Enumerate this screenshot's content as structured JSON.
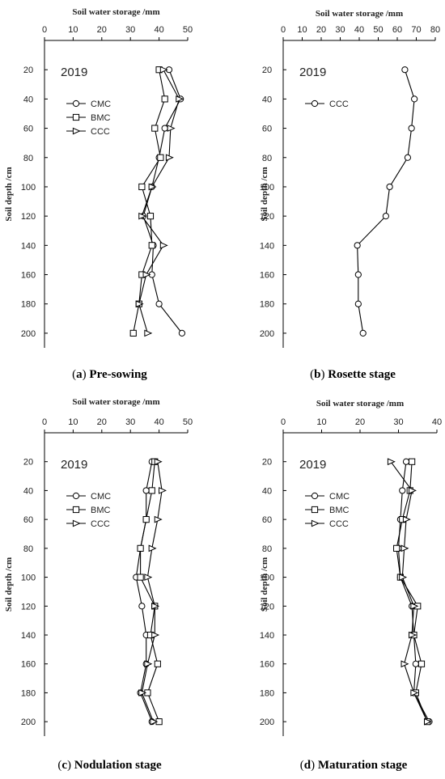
{
  "chart_data": [
    {
      "type": "line",
      "panel_letter": "a",
      "caption": "Pre-sowing",
      "year_label": "2019",
      "xlabel": "Soil water storage /mm",
      "ylabel": "Soil depth /cm",
      "xlim": [
        0,
        50
      ],
      "x_ticks": [
        0,
        10,
        20,
        30,
        40,
        50
      ],
      "ylim": [
        0,
        210
      ],
      "y_ticks": [
        20,
        40,
        60,
        80,
        100,
        120,
        140,
        160,
        180,
        200
      ],
      "legend_position": "upper-left",
      "depths": [
        20,
        40,
        60,
        80,
        100,
        120,
        140,
        160,
        180,
        200
      ],
      "series": [
        {
          "name": "CMC",
          "marker": "circle",
          "values": [
            43.5,
            47.5,
            42,
            40,
            37.5,
            34.5,
            38,
            37.5,
            40,
            48
          ]
        },
        {
          "name": "BMC",
          "marker": "square",
          "values": [
            40,
            42,
            38.5,
            40.5,
            34,
            37,
            37.5,
            34,
            33,
            31
          ]
        },
        {
          "name": "CCC",
          "marker": "triangle",
          "values": [
            41.5,
            47,
            44,
            43.5,
            37.5,
            34,
            41.5,
            35.5,
            33,
            36
          ]
        }
      ]
    },
    {
      "type": "line",
      "panel_letter": "b",
      "caption": "Rosette stage",
      "year_label": "2019",
      "xlabel": "Soil water storage /mm",
      "ylabel": "Soil depth /cm",
      "xlim": [
        0,
        80
      ],
      "x_ticks": [
        0,
        10,
        20,
        30,
        40,
        50,
        60,
        70,
        80
      ],
      "ylim": [
        0,
        210
      ],
      "y_ticks": [
        20,
        40,
        60,
        80,
        100,
        120,
        140,
        160,
        180,
        200
      ],
      "legend_position": "upper-left",
      "depths": [
        20,
        40,
        60,
        80,
        100,
        120,
        140,
        160,
        180,
        200
      ],
      "series": [
        {
          "name": "CCC",
          "marker": "circle",
          "values": [
            64,
            69,
            67.5,
            65.5,
            56,
            54,
            39,
            39.5,
            39.5,
            42
          ]
        }
      ]
    },
    {
      "type": "line",
      "panel_letter": "c",
      "caption": "Nodulation stage",
      "year_label": "2019",
      "xlabel": "Soil water storage /mm",
      "ylabel": "Soil depth /cm",
      "xlim": [
        0,
        50
      ],
      "x_ticks": [
        0,
        10,
        20,
        30,
        40,
        50
      ],
      "ylim": [
        0,
        210
      ],
      "y_ticks": [
        20,
        40,
        60,
        80,
        100,
        120,
        140,
        160,
        180,
        200
      ],
      "legend_position": "upper-left",
      "depths": [
        20,
        40,
        60,
        80,
        100,
        120,
        140,
        160,
        180,
        200
      ],
      "series": [
        {
          "name": "CMC",
          "marker": "circle",
          "values": [
            37.5,
            35.5,
            35.5,
            33.5,
            32,
            34,
            35.5,
            35.5,
            33.5,
            37.5
          ]
        },
        {
          "name": "BMC",
          "marker": "square",
          "values": [
            38.5,
            37.5,
            35.5,
            33.5,
            33.5,
            38.5,
            37,
            39.5,
            36,
            40
          ]
        },
        {
          "name": "CCC",
          "marker": "triangle",
          "values": [
            39.5,
            41,
            39.5,
            37.5,
            36,
            38.5,
            38.5,
            36,
            34,
            38
          ]
        }
      ]
    },
    {
      "type": "line",
      "panel_letter": "d",
      "caption": "Maturation stage",
      "year_label": "2019",
      "xlabel": "Soil water storage /mm",
      "ylabel": "Soil depth /cm",
      "xlim": [
        0,
        40
      ],
      "x_ticks": [
        0,
        10,
        20,
        30,
        40
      ],
      "ylim": [
        0,
        210
      ],
      "y_ticks": [
        20,
        40,
        60,
        80,
        100,
        120,
        140,
        160,
        180,
        200
      ],
      "legend_position": "upper-left",
      "depths": [
        20,
        40,
        60,
        80,
        100,
        120,
        140,
        160,
        180,
        200
      ],
      "series": [
        {
          "name": "CMC",
          "marker": "circle",
          "values": [
            32,
            31,
            30.5,
            30,
            30.5,
            33.5,
            34,
            34.5,
            34,
            38
          ]
        },
        {
          "name": "BMC",
          "marker": "square",
          "values": [
            33.5,
            33,
            31,
            29.5,
            30.5,
            35,
            34,
            36,
            34.5,
            37.5
          ]
        },
        {
          "name": "CCC",
          "marker": "triangle",
          "values": [
            28,
            33.5,
            32,
            31.5,
            31,
            34,
            33.5,
            31.5,
            34,
            37.5
          ]
        }
      ]
    }
  ]
}
